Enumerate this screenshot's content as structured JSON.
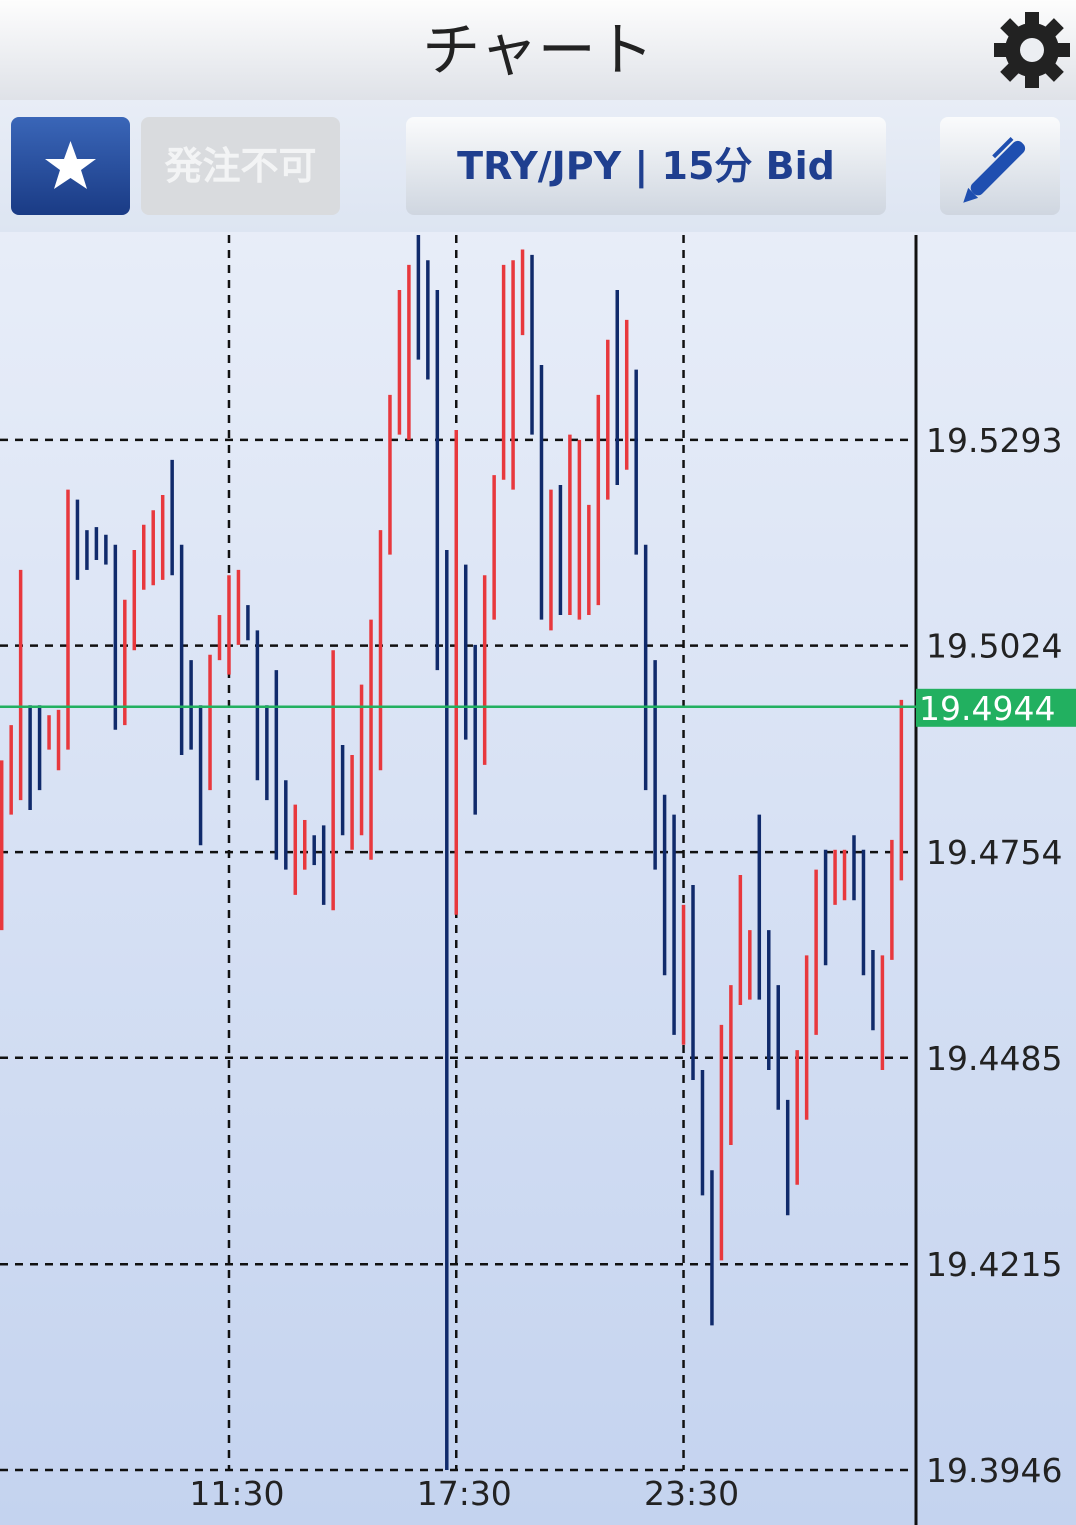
{
  "header": {
    "title": "チャート"
  },
  "toolbar": {
    "order_status": "発注不可",
    "symbol": "TRY/JPY | 15分 Bid"
  },
  "chart_data": {
    "type": "hilo",
    "categories": [
      null,
      null,
      null,
      null,
      null,
      null,
      null,
      null,
      null,
      null,
      null,
      null,
      null,
      null,
      null,
      null,
      null,
      null,
      null,
      null,
      null,
      null,
      null,
      null,
      "11:30",
      null,
      null,
      null,
      null,
      null,
      null,
      null,
      null,
      null,
      null,
      null,
      null,
      null,
      null,
      null,
      null,
      null,
      null,
      null,
      null,
      null,
      null,
      null,
      "17:30",
      null,
      null,
      null,
      null,
      null,
      null,
      null,
      null,
      null,
      null,
      null,
      null,
      null,
      null,
      null,
      null,
      null,
      null,
      null,
      null,
      null,
      null,
      null,
      "23:30",
      null,
      null,
      null,
      null,
      null,
      null,
      null,
      null,
      null,
      null,
      null,
      null,
      null,
      null,
      null,
      null,
      null,
      null,
      null,
      null,
      null,
      null,
      null
    ],
    "high": [
      19.4874,
      19.492,
      19.5123,
      19.4946,
      19.4946,
      19.4933,
      19.494,
      19.5228,
      19.5215,
      19.5175,
      19.5179,
      19.5169,
      19.5156,
      19.5084,
      19.5149,
      19.5182,
      19.5201,
      19.5221,
      19.5267,
      19.5156,
      19.5005,
      19.4946,
      19.5012,
      19.5064,
      19.5116,
      19.5123,
      19.5077,
      19.5044,
      19.4946,
      19.4992,
      19.4848,
      19.4816,
      19.4796,
      19.4776,
      19.4789,
      19.5018,
      19.4894,
      19.4881,
      19.4973,
      19.5058,
      19.5175,
      19.5352,
      19.5489,
      19.5522,
      19.5561,
      19.5528,
      19.5489,
      19.5149,
      19.5306,
      19.513,
      19.5025,
      19.5116,
      19.5247,
      19.5522,
      19.5528,
      19.5542,
      19.5535,
      19.5391,
      19.5228,
      19.5234,
      19.53,
      19.5293,
      19.5208,
      19.5352,
      19.5424,
      19.5489,
      19.545,
      19.5385,
      19.5156,
      19.5005,
      19.4829,
      19.4803,
      19.4685,
      19.4711,
      19.4469,
      19.4338,
      19.4528,
      19.458,
      19.4724,
      19.4652,
      19.4803,
      19.4652,
      19.458,
      19.443,
      19.4495,
      19.4619,
      19.4731,
      19.4757,
      19.4757,
      19.4757,
      19.4776,
      19.4757,
      19.4626,
      19.4619,
      19.477,
      19.4953
    ],
    "low": [
      19.4652,
      19.4803,
      19.4822,
      19.4809,
      19.4835,
      19.4888,
      19.4861,
      19.4888,
      19.511,
      19.5123,
      19.5136,
      19.513,
      19.4914,
      19.492,
      19.5018,
      19.5097,
      19.5103,
      19.511,
      19.5116,
      19.4881,
      19.4888,
      19.4763,
      19.4835,
      19.5005,
      19.4986,
      19.5025,
      19.5031,
      19.4848,
      19.4822,
      19.4744,
      19.4731,
      19.4698,
      19.4731,
      19.4737,
      19.4685,
      19.4678,
      19.4776,
      19.4757,
      19.4776,
      19.4744,
      19.4861,
      19.5143,
      19.53,
      19.5293,
      19.5398,
      19.5372,
      19.4992,
      19.3946,
      19.4672,
      19.4901,
      19.4803,
      19.4868,
      19.5058,
      19.5241,
      19.5228,
      19.543,
      19.53,
      19.5058,
      19.5044,
      19.5064,
      19.5064,
      19.5058,
      19.5064,
      19.5077,
      19.5215,
      19.5234,
      19.5254,
      19.5143,
      19.4835,
      19.4731,
      19.4593,
      19.4515,
      19.4502,
      19.4456,
      19.4305,
      19.4135,
      19.422,
      19.4371,
      19.4554,
      19.4561,
      19.4561,
      19.4469,
      19.4417,
      19.4279,
      19.4319,
      19.4404,
      19.4515,
      19.4606,
      19.4685,
      19.4691,
      19.4691,
      19.4593,
      19.4521,
      19.4469,
      19.4613,
      19.4717
    ],
    "rising": [
      true,
      true,
      true,
      false,
      false,
      true,
      true,
      true,
      false,
      false,
      false,
      false,
      false,
      true,
      true,
      true,
      true,
      true,
      false,
      false,
      false,
      false,
      true,
      true,
      true,
      true,
      false,
      false,
      false,
      false,
      false,
      true,
      true,
      false,
      false,
      true,
      false,
      true,
      true,
      true,
      true,
      true,
      true,
      true,
      false,
      false,
      false,
      false,
      true,
      false,
      false,
      true,
      true,
      true,
      true,
      true,
      false,
      false,
      true,
      false,
      true,
      true,
      true,
      true,
      true,
      false,
      true,
      false,
      false,
      false,
      false,
      false,
      true,
      false,
      false,
      false,
      true,
      true,
      true,
      true,
      false,
      false,
      false,
      false,
      true,
      true,
      true,
      false,
      true,
      true,
      false,
      false,
      false,
      true,
      true,
      true
    ],
    "up_color": "#e8383d",
    "down_color": "#102a6b",
    "ylim": [
      19.3874,
      19.5561
    ],
    "yticks": [
      19.5293,
      19.5024,
      19.4754,
      19.4485,
      19.4215,
      19.3946
    ],
    "last_price": 19.4944,
    "last_price_color": "#22b060",
    "grid": true
  }
}
